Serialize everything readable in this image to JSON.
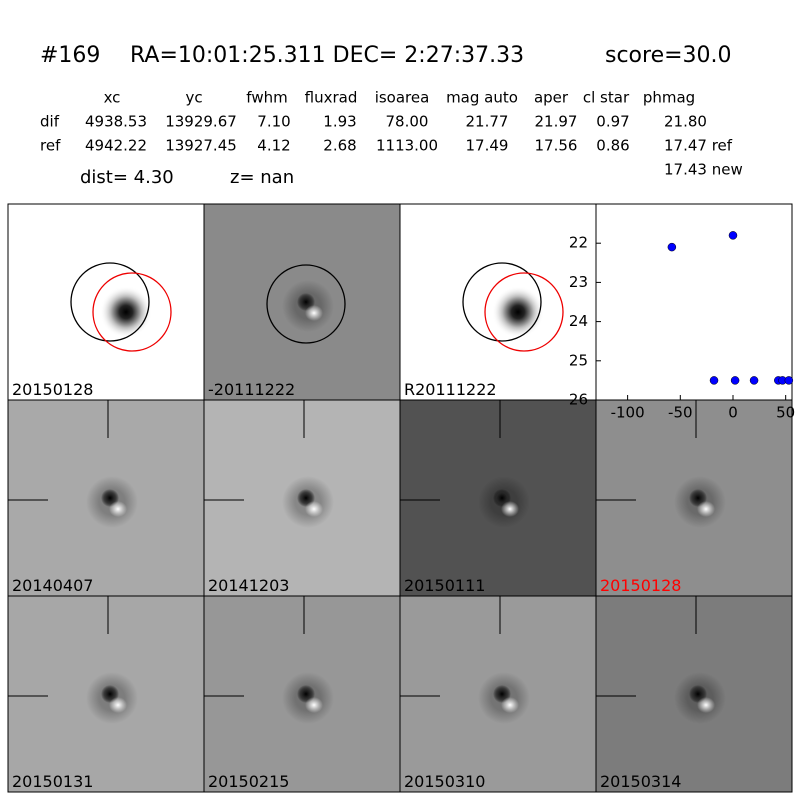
{
  "header": {
    "id": "#169",
    "coords": "RA=10:01:25.311 DEC= 2:27:37.33",
    "score": "score=30.0",
    "dist": "dist=  4.30",
    "z": "z=   nan"
  },
  "table": {
    "columns": [
      "xc",
      "yc",
      "fwhm",
      "fluxrad",
      "isoarea",
      "mag auto",
      "aper",
      "cl star",
      "phmag"
    ],
    "rows": [
      [
        "dif",
        "4938.53",
        "13929.67",
        "7.10",
        "1.93",
        "78.00",
        "21.77",
        "21.97",
        "0.97",
        "21.80"
      ],
      [
        "ref",
        "4942.22",
        "13927.45",
        "4.12",
        "2.68",
        "1113.00",
        "17.49",
        "17.56",
        "0.86",
        "17.47 ref"
      ]
    ],
    "extra": "17.43 new"
  },
  "panels": [
    "20150128",
    "-20111222",
    "R20111222",
    "20140407",
    "20141203",
    "20150111",
    "20150128",
    "20150131",
    "20150215",
    "20150310",
    "20150314"
  ],
  "chart_data": {
    "type": "scatter",
    "color": "#0000ff",
    "x": [
      -58,
      0,
      -18,
      2,
      20,
      43,
      47,
      53
    ],
    "values": [
      22.1,
      21.8,
      25.5,
      25.5,
      25.5,
      25.5,
      25.5,
      25.5
    ],
    "xlim": [
      -130,
      56
    ],
    "xticks": [
      -100,
      -50,
      0,
      50
    ],
    "ylim": [
      26,
      21
    ],
    "yticks": [
      22,
      23,
      24,
      25,
      26
    ]
  }
}
